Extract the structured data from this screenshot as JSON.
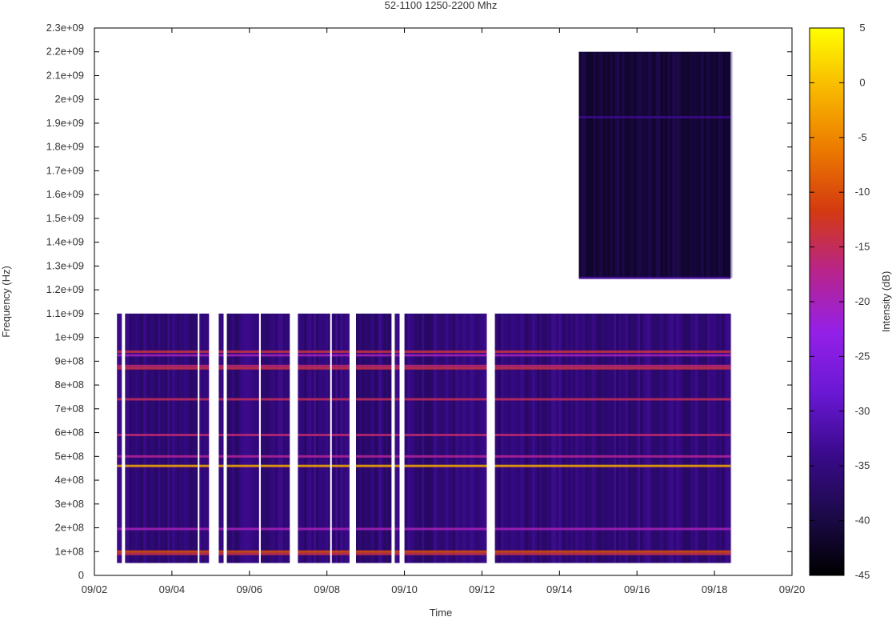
{
  "chart_data": {
    "type": "heatmap",
    "title": "52-1100 1250-2200 Mhz",
    "xlabel": "Time",
    "ylabel": "Frequency (Hz)",
    "colorbar_label": "Intensity (dB)",
    "x_range": [
      "09/02",
      "09/20"
    ],
    "x_ticks": [
      "09/02",
      "09/04",
      "09/06",
      "09/08",
      "09/10",
      "09/12",
      "09/14",
      "09/16",
      "09/18",
      "09/20"
    ],
    "y_range": [
      0,
      2300000000
    ],
    "y_ticks": [
      "0",
      "1e+08",
      "2e+08",
      "3e+08",
      "4e+08",
      "5e+08",
      "6e+08",
      "7e+08",
      "8e+08",
      "9e+08",
      "1e+09",
      "1.1e+09",
      "1.2e+09",
      "1.3e+09",
      "1.4e+09",
      "1.5e+09",
      "1.6e+09",
      "1.7e+09",
      "1.8e+09",
      "1.9e+09",
      "2e+09",
      "2.1e+09",
      "2.2e+09",
      "2.3e+09"
    ],
    "colorbar_range": [
      -45,
      5
    ],
    "colorbar_ticks": [
      "5",
      "0",
      "-5",
      "-10",
      "-15",
      "-20",
      "-25",
      "-30",
      "-35",
      "-40",
      "-45"
    ],
    "colormap": [
      "#000000",
      "#1c0a4a",
      "#3a0a8c",
      "#6a18d4",
      "#9420e8",
      "#b8248a",
      "#d43a10",
      "#ec7a00",
      "#f8b800",
      "#ffff00"
    ],
    "grid": false,
    "legend": "colorbar-right",
    "regions": [
      {
        "name": "52-1100 MHz",
        "freq_range": [
          52000000,
          1100000000
        ],
        "time_range": [
          "09/02 14:00",
          "09/18 10:00"
        ],
        "typical_dB": -35
      },
      {
        "name": "1250-2200 MHz",
        "freq_range": [
          1250000000,
          2200000000
        ],
        "time_range": [
          "09/14 12:00",
          "09/18 10:00"
        ],
        "typical_dB": -40
      }
    ],
    "gaps": [
      {
        "from": "09/02 17:00",
        "to": "09/02 19:00"
      },
      {
        "from": "09/04 16:00",
        "to": "09/04 17:00"
      },
      {
        "from": "09/04 23:00",
        "to": "09/05 05:00"
      },
      {
        "from": "09/05 08:00",
        "to": "09/05 10:00"
      },
      {
        "from": "09/06 06:00",
        "to": "09/06 07:00"
      },
      {
        "from": "09/07 01:00",
        "to": "09/07 06:00"
      },
      {
        "from": "09/08 02:00",
        "to": "09/08 03:00"
      },
      {
        "from": "09/08 14:00",
        "to": "09/08 18:00"
      },
      {
        "from": "09/09 16:00",
        "to": "09/09 18:00"
      },
      {
        "from": "09/09 21:00",
        "to": "09/10 00:00"
      },
      {
        "from": "09/12 03:00",
        "to": "09/12 08:00"
      }
    ],
    "bands": [
      {
        "freq": 90000000,
        "dB": -14
      },
      {
        "freq": 100000000,
        "dB": -10
      },
      {
        "freq": 195000000,
        "dB": -20
      },
      {
        "freq": 460000000,
        "dB": -2
      },
      {
        "freq": 500000000,
        "dB": -18
      },
      {
        "freq": 590000000,
        "dB": -16
      },
      {
        "freq": 740000000,
        "dB": -15
      },
      {
        "freq": 870000000,
        "dB": -14
      },
      {
        "freq": 880000000,
        "dB": -16
      },
      {
        "freq": 925000000,
        "dB": -20
      },
      {
        "freq": 940000000,
        "dB": -14
      },
      {
        "freq": 1250000000,
        "dB": -33
      },
      {
        "freq": 1925000000,
        "dB": -34
      }
    ]
  }
}
